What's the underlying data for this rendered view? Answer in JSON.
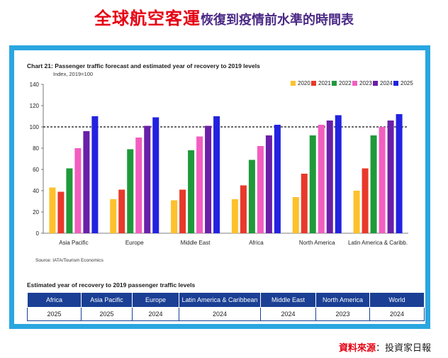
{
  "headline": {
    "main": "全球航空客運",
    "sub": "恢復到疫情前水準的時間表"
  },
  "chart_data": {
    "type": "bar",
    "title": "Chart 21: Passenger traffic forecast and estimated year of recovery to 2019 levels",
    "ylabel": "Index, 2019=100",
    "ylim": [
      0,
      140
    ],
    "yticks": [
      0,
      20,
      40,
      60,
      80,
      100,
      120,
      140
    ],
    "reference_line": 100,
    "grid": false,
    "legend_position": "top-right",
    "categories": [
      "Asia Pacific",
      "Europe",
      "Middle East",
      "Africa",
      "North America",
      "Latin America & Caribb."
    ],
    "series": [
      {
        "name": "2020",
        "color": "#fdc12b",
        "values": [
          43,
          32,
          31,
          32,
          34,
          40
        ]
      },
      {
        "name": "2021",
        "color": "#e8392b",
        "values": [
          39,
          41,
          41,
          45,
          56,
          61
        ]
      },
      {
        "name": "2022",
        "color": "#1f9a3a",
        "values": [
          61,
          79,
          78,
          69,
          92,
          92
        ]
      },
      {
        "name": "2023",
        "color": "#f25ec0",
        "values": [
          80,
          90,
          91,
          82,
          102,
          100
        ]
      },
      {
        "name": "2024",
        "color": "#6a1fa8",
        "values": [
          96,
          101,
          101,
          92,
          106,
          106
        ]
      },
      {
        "name": "2025",
        "color": "#2222e0",
        "values": [
          110,
          109,
          110,
          102,
          111,
          112
        ]
      }
    ],
    "source": "Source: IATA/Tourism  Economics"
  },
  "table": {
    "title": "Estimated year of recovery to 2019 passenger traffic levels",
    "headers": [
      "Africa",
      "Asia Pacific",
      "Europe",
      "Latin America & Caribbean",
      "Middle East",
      "North America",
      "World"
    ],
    "values": [
      "2025",
      "2025",
      "2024",
      "2024",
      "2024",
      "2023",
      "2024"
    ]
  },
  "credit": {
    "label": "資料來源",
    "separator": "：",
    "value": "投資家日報"
  }
}
